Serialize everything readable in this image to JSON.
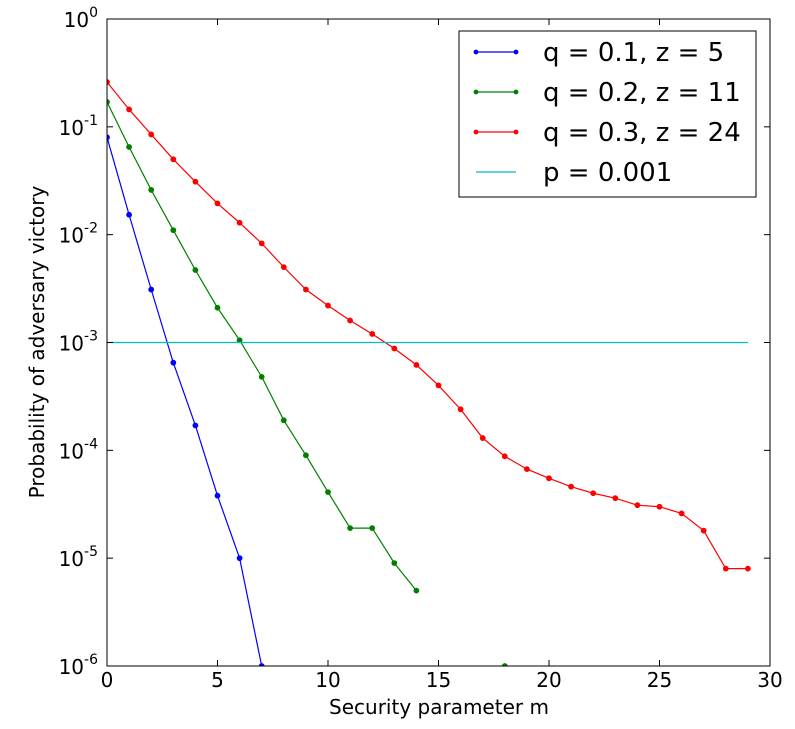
{
  "chart_data": {
    "type": "line",
    "xlabel": "Security parameter m",
    "ylabel": "Probability of adversary victory",
    "xlim": [
      0,
      30
    ],
    "ylim": [
      1e-06,
      1
    ],
    "yscale": "log",
    "x_ticks": [
      {
        "value": 0,
        "label": "0"
      },
      {
        "value": 5,
        "label": "5"
      },
      {
        "value": 10,
        "label": "10"
      },
      {
        "value": 15,
        "label": "15"
      },
      {
        "value": 20,
        "label": "20"
      },
      {
        "value": 25,
        "label": "25"
      },
      {
        "value": 30,
        "label": "30"
      }
    ],
    "y_ticks": [
      {
        "value": 1,
        "base": "10",
        "exp": "0"
      },
      {
        "value": 0.1,
        "base": "10",
        "exp": "-1"
      },
      {
        "value": 0.01,
        "base": "10",
        "exp": "-2"
      },
      {
        "value": 0.001,
        "base": "10",
        "exp": "-3"
      },
      {
        "value": 0.0001,
        "base": "10",
        "exp": "-4"
      },
      {
        "value": 1e-05,
        "base": "10",
        "exp": "-5"
      },
      {
        "value": 1e-06,
        "base": "10",
        "exp": "-6"
      }
    ],
    "grid": false,
    "legend_position": "top-right",
    "series": [
      {
        "name": "q = 0.1, z = 5",
        "color": "#0000ff",
        "markers": true,
        "x": [
          0,
          1,
          2,
          3,
          4,
          5,
          6,
          7
        ],
        "y": [
          0.08,
          0.0153,
          0.0031,
          0.00065,
          0.00017,
          3.8e-05,
          1e-05,
          1e-06
        ]
      },
      {
        "name": "q = 0.2, z = 11",
        "color": "#008000",
        "markers": true,
        "x": [
          0,
          1,
          2,
          3,
          4,
          5,
          6,
          7,
          8,
          9,
          10,
          11,
          12,
          13,
          14
        ],
        "y": [
          0.17,
          0.065,
          0.026,
          0.011,
          0.0047,
          0.0021,
          0.00105,
          0.00048,
          0.00019,
          9e-05,
          4.1e-05,
          1.9e-05,
          1.9e-05,
          9e-06,
          5e-06
        ]
      },
      {
        "name": "q = 0.3, z = 24",
        "color": "#ff0000",
        "markers": true,
        "x": [
          0,
          1,
          2,
          3,
          4,
          5,
          6,
          7,
          8,
          9,
          10,
          11,
          12,
          13,
          14,
          15,
          16,
          17,
          18,
          19,
          20,
          21,
          22,
          23,
          24,
          25,
          26,
          27,
          28,
          29
        ],
        "y": [
          0.26,
          0.145,
          0.085,
          0.05,
          0.031,
          0.0195,
          0.0129,
          0.0083,
          0.005,
          0.0031,
          0.0022,
          0.0016,
          0.0012,
          0.00088,
          0.00062,
          0.0004,
          0.00024,
          0.00013,
          8.8e-05,
          6.7e-05,
          5.5e-05,
          4.6e-05,
          4e-05,
          3.6e-05,
          3.1e-05,
          3e-05,
          2.6e-05,
          1.8e-05,
          8e-06,
          8e-06
        ]
      },
      {
        "name": "p = 0.001",
        "color": "#00bfbf",
        "markers": false,
        "x": [
          0,
          29
        ],
        "y": [
          0.001,
          0.001
        ]
      }
    ],
    "extra_points": [
      {
        "x": 18,
        "y": 1e-06,
        "color": "#008000"
      }
    ]
  }
}
